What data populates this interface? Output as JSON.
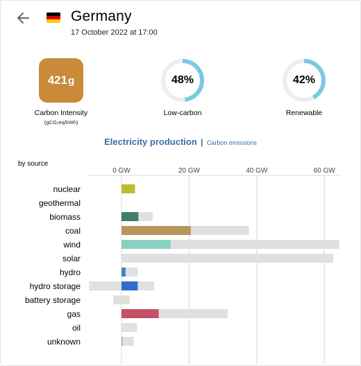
{
  "header": {
    "back_icon": "arrow-left-icon",
    "flag_icon": "germany-flag-icon",
    "country": "Germany",
    "datetime": "17 October 2022 at 17:00"
  },
  "kpis": {
    "carbon_intensity": {
      "value": "421",
      "unit": "g",
      "label": "Carbon Intensity",
      "sublabel": "(gCO₂eq/kWh)",
      "color": "#c98a3a"
    },
    "low_carbon": {
      "percent": 48,
      "text": "48%",
      "label": "Low-carbon"
    },
    "renewable": {
      "percent": 42,
      "text": "42%",
      "label": "Renewable"
    },
    "donut_color": "#7dc7e6",
    "donut_track_color": "#eeeeee"
  },
  "tabs": {
    "active": "Electricity production",
    "separator": "|",
    "other": "Carbon emissions"
  },
  "chart_title": "by source",
  "chart_data": {
    "type": "bar",
    "orientation": "horizontal",
    "unit": "GW",
    "xlim": [
      -4.5,
      62
    ],
    "ticks": [
      0,
      20,
      40,
      60
    ],
    "tick_labels": [
      "0 GW",
      "20 GW",
      "40 GW",
      "60 GW"
    ],
    "grid": true,
    "categories": [
      "nuclear",
      "geothermal",
      "biomass",
      "coal",
      "wind",
      "solar",
      "hydro",
      "hydro storage",
      "battery storage",
      "gas",
      "oil",
      "unknown"
    ],
    "series": [
      {
        "role": "capacity",
        "color": "#e0e0e0",
        "ranges": [
          [
            0,
            4
          ],
          null,
          [
            0,
            9.2
          ],
          [
            0,
            37.7
          ],
          [
            0,
            64.4
          ],
          [
            0,
            62.6
          ],
          [
            0,
            4.8
          ],
          [
            -9.6,
            9.6
          ],
          [
            -2.4,
            2.4
          ],
          [
            0,
            31.4
          ],
          [
            0,
            4.6
          ],
          [
            0,
            3.6
          ]
        ]
      },
      {
        "role": "production",
        "colors": [
          "#b8bf2f",
          null,
          "#3f7d6e",
          "#b8955a",
          "#88d0c1",
          null,
          "#3d85c6",
          "#2f6ccc",
          null,
          "#c1526a",
          null,
          "#aaaaaa"
        ],
        "values": [
          4,
          0,
          5,
          20.5,
          14.5,
          0,
          1.2,
          4.8,
          0,
          11,
          0,
          0.3
        ]
      }
    ]
  }
}
